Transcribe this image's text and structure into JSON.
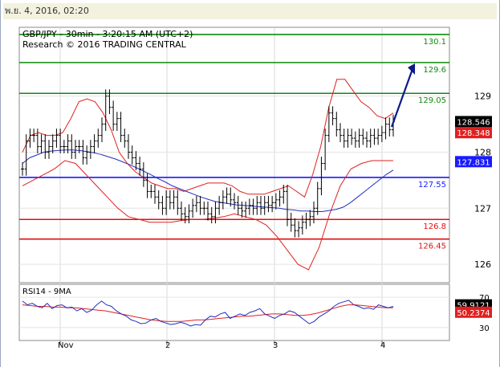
{
  "timestamp": "พ.ย. 4, 2016, 02:20",
  "header": {
    "line1": "GBP/JPY - 30min - 3:20:15 AM (UTC+2)",
    "line2": "Research © 2016 TRADING CENTRAL"
  },
  "colors": {
    "up_level": "#0f8a0f",
    "down_level": "#e01010",
    "pivot": "#1a1aff",
    "bands": "#e02020",
    "ma": "#2030c0",
    "price": "#000000",
    "arrow": "#0a1a8a"
  },
  "chart_data": [
    {
      "type": "candlestick",
      "title": "GBP/JPY - 30min",
      "x_ticks": [
        "Nov",
        "2",
        "3",
        "4"
      ],
      "y_ticks": [
        126,
        127,
        128,
        129
      ],
      "ylim": [
        125.7,
        130.2
      ],
      "levels": [
        {
          "value": 130.1,
          "label": "130.1",
          "color": "#0f8a0f"
        },
        {
          "value": 129.6,
          "label": "129.6",
          "color": "#0f8a0f"
        },
        {
          "value": 129.05,
          "label": "129.05",
          "color": "#0f8a0f"
        },
        {
          "value": 127.55,
          "label": "127.55",
          "color": "#1a1aff"
        },
        {
          "value": 126.8,
          "label": "126.8",
          "color": "#e01010"
        },
        {
          "value": 126.45,
          "label": "126.45",
          "color": "#e01010"
        }
      ],
      "price_tags": [
        {
          "value": 128.546,
          "label": "128.546",
          "bg": "#000000",
          "fg": "#ffffff"
        },
        {
          "value": 128.348,
          "label": "128.348",
          "bg": "#e02020",
          "fg": "#ffffff"
        },
        {
          "value": 127.831,
          "label": "127.831",
          "bg": "#1a1aff",
          "fg": "#ffffff"
        }
      ],
      "close": [
        127.7,
        128.2,
        128.3,
        128.3,
        128.1,
        128.2,
        128.0,
        128.1,
        128.2,
        128.3,
        128.1,
        128.1,
        128.2,
        128.0,
        128.1,
        128.1,
        127.9,
        128.0,
        128.1,
        128.2,
        128.3,
        128.5,
        129.0,
        128.8,
        128.5,
        128.6,
        128.3,
        128.2,
        128.0,
        127.9,
        127.8,
        127.7,
        127.5,
        127.3,
        127.3,
        127.2,
        127.1,
        127.0,
        127.2,
        127.1,
        127.2,
        127.0,
        126.9,
        126.85,
        126.95,
        127.05,
        127.1,
        127.0,
        127.0,
        126.9,
        126.85,
        127.0,
        127.1,
        127.2,
        127.25,
        127.15,
        127.1,
        127.0,
        126.95,
        127.0,
        127.05,
        127.0,
        127.1,
        127.0,
        127.1,
        127.05,
        127.1,
        127.15,
        127.2,
        127.3,
        126.8,
        126.7,
        126.6,
        126.65,
        126.75,
        126.8,
        126.85,
        127.0,
        127.35,
        127.8,
        128.3,
        128.7,
        128.6,
        128.4,
        128.3,
        128.2,
        128.3,
        128.25,
        128.2,
        128.3,
        128.25,
        128.2,
        128.3,
        128.25,
        128.3,
        128.35,
        128.5,
        128.4,
        128.55
      ],
      "ma": [
        127.8,
        127.9,
        127.95,
        128.0,
        128.02,
        128.03,
        128.04,
        128.04,
        128.03,
        128.01,
        127.99,
        127.96,
        127.92,
        127.88,
        127.83,
        127.78,
        127.72,
        127.66,
        127.6,
        127.53,
        127.47,
        127.4,
        127.35,
        127.3,
        127.25,
        127.2,
        127.16,
        127.12,
        127.1,
        127.08,
        127.06,
        127.05,
        127.04,
        127.03,
        127.02,
        127.01,
        127.0,
        126.98,
        126.97,
        126.95,
        126.95,
        126.94,
        126.94,
        126.96,
        126.98,
        127.02,
        127.1,
        127.2,
        127.3,
        127.4,
        127.5,
        127.6,
        127.68
      ],
      "bb_upper": [
        128.0,
        128.3,
        128.35,
        128.3,
        128.3,
        128.35,
        128.6,
        128.9,
        128.95,
        128.9,
        128.7,
        128.4,
        128.0,
        127.8,
        127.65,
        127.55,
        127.45,
        127.4,
        127.35,
        127.35,
        127.3,
        127.35,
        127.4,
        127.45,
        127.45,
        127.45,
        127.4,
        127.3,
        127.25,
        127.25,
        127.25,
        127.3,
        127.35,
        127.4,
        127.3,
        127.2,
        127.6,
        128.1,
        128.8,
        129.3,
        129.3,
        129.1,
        128.9,
        128.8,
        128.65,
        128.6,
        128.7
      ],
      "bb_lower": [
        127.4,
        127.5,
        127.6,
        127.7,
        127.85,
        127.8,
        127.6,
        127.4,
        127.2,
        127.0,
        126.85,
        126.8,
        126.75,
        126.75,
        126.75,
        126.78,
        126.8,
        126.8,
        126.82,
        126.85,
        126.9,
        126.85,
        126.8,
        126.7,
        126.5,
        126.25,
        126.0,
        125.9,
        126.3,
        126.9,
        127.4,
        127.7,
        127.8,
        127.85,
        127.85,
        127.85
      ],
      "rsi": [
        65,
        60,
        62,
        58,
        56,
        62,
        55,
        59,
        60,
        56,
        57,
        52,
        55,
        50,
        53,
        60,
        65,
        60,
        58,
        52,
        48,
        45,
        40,
        38,
        35,
        36,
        40,
        42,
        38,
        36,
        34,
        35,
        37,
        35,
        32,
        34,
        33,
        40,
        45,
        44,
        48,
        50,
        42,
        45,
        48,
        46,
        50,
        52,
        55,
        48,
        45,
        42,
        46,
        48,
        52,
        50,
        45,
        40,
        35,
        38,
        44,
        48,
        52,
        58,
        62,
        64,
        66,
        60,
        58,
        55,
        56,
        54,
        60,
        58,
        56,
        58
      ],
      "rsi_ma": [
        60,
        59,
        58,
        58,
        57,
        57,
        56,
        56,
        55,
        54,
        53,
        52,
        50,
        48,
        46,
        44,
        42,
        40,
        39,
        38,
        38,
        38,
        39,
        40,
        40,
        41,
        42,
        43,
        44,
        45,
        45,
        46,
        47,
        48,
        48,
        47,
        46,
        46,
        47,
        49,
        52,
        55,
        58,
        60,
        60,
        59,
        58,
        57,
        56,
        56
      ]
    },
    {
      "type": "line",
      "title": "RSI14 - 9MA",
      "y_ticks": [
        30,
        70
      ],
      "ylim": [
        15,
        85
      ],
      "price_tags": [
        {
          "value": 59.9121,
          "label": "59.9121",
          "bg": "#000000",
          "fg": "#ffffff"
        },
        {
          "value": 50.2374,
          "label": "50.2374",
          "bg": "#e02020",
          "fg": "#ffffff"
        }
      ]
    }
  ]
}
